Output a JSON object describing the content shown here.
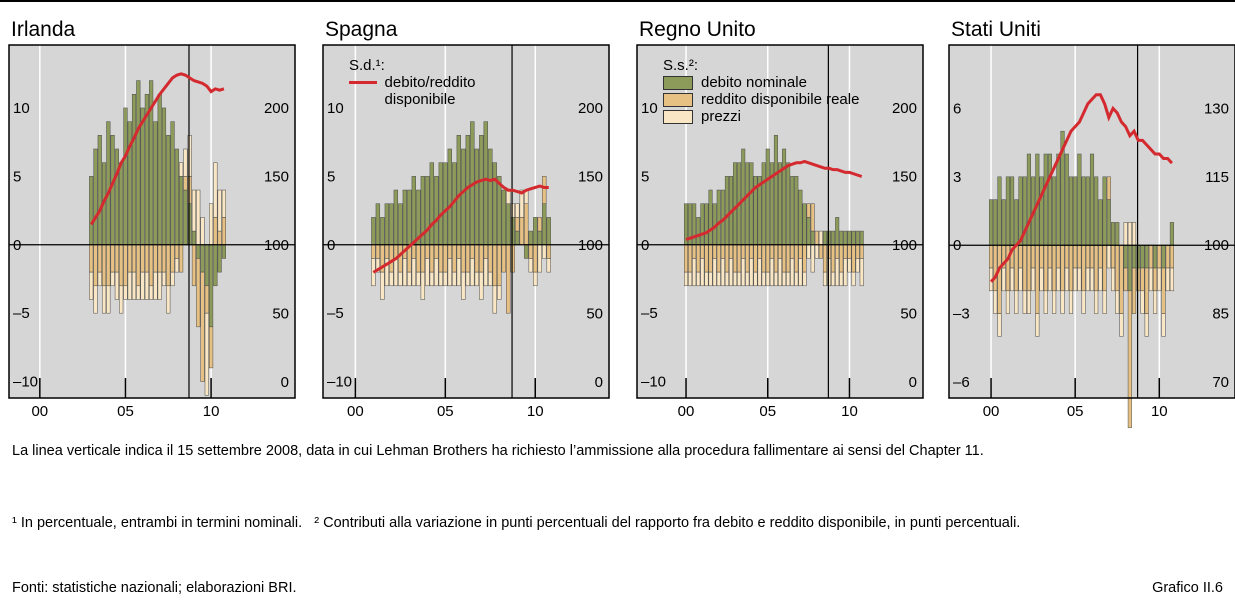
{
  "chart_data": [
    {
      "type": "combo",
      "title": "Irlanda",
      "xlim": [
        1998.2,
        2014.9
      ],
      "ylim": [
        -11.2,
        14.6
      ],
      "y2lim": [
        -11.7,
        246
      ],
      "xticks": [
        {
          "value": 2000,
          "label": "00"
        },
        {
          "value": 2005,
          "label": "05"
        },
        {
          "value": 2010,
          "label": "10"
        }
      ],
      "yticks": [
        {
          "value": -10,
          "label": "–10"
        },
        {
          "value": -5,
          "label": "–5"
        },
        0,
        5,
        10
      ],
      "y2ticks": [
        0,
        50,
        100,
        150,
        200
      ],
      "event_x": 2008.71,
      "x": [
        2003,
        2003.25,
        2003.5,
        2003.75,
        2004,
        2004.25,
        2004.5,
        2004.75,
        2005,
        2005.25,
        2005.5,
        2005.75,
        2006,
        2006.25,
        2006.5,
        2006.75,
        2007,
        2007.25,
        2007.5,
        2007.75,
        2008,
        2008.25,
        2008.5,
        2008.75,
        2009,
        2009.25,
        2009.5,
        2009.75,
        2010,
        2010.25,
        2010.5,
        2010.75
      ],
      "series": [
        {
          "name": "debito nominale",
          "color": "#8c9a5a",
          "values": [
            5,
            7,
            8,
            6,
            9,
            8,
            7,
            6,
            10,
            9,
            11,
            12,
            10,
            11,
            12,
            9,
            11,
            10,
            8,
            9,
            7,
            5,
            4,
            3,
            1,
            -1,
            -2,
            -3,
            -6,
            -3,
            -2,
            -1
          ]
        },
        {
          "name": "reddito disponibile reale",
          "color": "#e6c183",
          "values": [
            -2,
            -3,
            -2,
            -3,
            -3,
            -2,
            -2,
            -3,
            -3,
            -2,
            -2,
            -3,
            -2,
            -2,
            -3,
            -2,
            -2,
            -2,
            -3,
            -2,
            -1,
            -2,
            1,
            2,
            -3,
            -5,
            -8,
            -2,
            -3,
            2,
            1,
            2
          ]
        },
        {
          "name": "prezzi",
          "color": "#f8e6c4",
          "values": [
            -2,
            -2,
            -1,
            -2,
            -2,
            -1,
            -2,
            -2,
            -1,
            -2,
            -2,
            -1,
            -2,
            -2,
            -1,
            -2,
            -2,
            -1,
            -2,
            -1,
            -1,
            1,
            2,
            3,
            3,
            4,
            2,
            -6,
            3,
            4,
            3,
            2
          ]
        },
        {
          "name": "debito/reddito disponibile",
          "color": "#d42a2f",
          "axis": "y2",
          "values": [
            115,
            120,
            125,
            132,
            138,
            145,
            152,
            160,
            165,
            172,
            178,
            185,
            190,
            195,
            200,
            205,
            210,
            214,
            218,
            222,
            224,
            225,
            224,
            222,
            220,
            219,
            218,
            216,
            212,
            214,
            213,
            214
          ]
        }
      ]
    },
    {
      "type": "combo",
      "title": "Spagna",
      "xlim": [
        1998.2,
        2014.1
      ],
      "ylim": [
        -11.2,
        14.6
      ],
      "y2lim": [
        -11.7,
        246
      ],
      "xticks": [
        {
          "value": 2000,
          "label": "00"
        },
        {
          "value": 2005,
          "label": "05"
        },
        {
          "value": 2010,
          "label": "10"
        }
      ],
      "yticks": [
        {
          "value": -10,
          "label": "–10"
        },
        {
          "value": -5,
          "label": "–5"
        },
        0,
        5,
        10
      ],
      "y2ticks": [
        0,
        50,
        100,
        150,
        200
      ],
      "event_x": 2008.71,
      "legend": "line",
      "legend_title": "S.d.¹:",
      "x": [
        2001,
        2001.25,
        2001.5,
        2001.75,
        2002,
        2002.25,
        2002.5,
        2002.75,
        2003,
        2003.25,
        2003.5,
        2003.75,
        2004,
        2004.25,
        2004.5,
        2004.75,
        2005,
        2005.25,
        2005.5,
        2005.75,
        2006,
        2006.25,
        2006.5,
        2006.75,
        2007,
        2007.25,
        2007.5,
        2007.75,
        2008,
        2008.25,
        2008.5,
        2008.75,
        2009,
        2009.25,
        2009.5,
        2009.75,
        2010,
        2010.25,
        2010.5,
        2010.75
      ],
      "series": [
        {
          "name": "debito nominale",
          "color": "#8c9a5a",
          "values": [
            2,
            3,
            2,
            3,
            3,
            4,
            3,
            4,
            4,
            5,
            4,
            5,
            5,
            6,
            5,
            6,
            6,
            7,
            6,
            8,
            7,
            8,
            9,
            7,
            8,
            9,
            7,
            6,
            5,
            4,
            3,
            2,
            1,
            0,
            -1,
            1,
            2,
            1,
            3,
            2
          ]
        },
        {
          "name": "reddito disponibile reale",
          "color": "#e6c183",
          "values": [
            -1,
            -1,
            -2,
            -1,
            -2,
            -1,
            -2,
            -1,
            -2,
            -1,
            -2,
            -2,
            -1,
            -2,
            -1,
            -2,
            -2,
            -1,
            -2,
            -1,
            -2,
            -2,
            -1,
            -2,
            -2,
            -1,
            -2,
            -3,
            -3,
            -2,
            -5,
            -2,
            1,
            2,
            3,
            -1,
            -2,
            1,
            2,
            -1
          ]
        },
        {
          "name": "prezzi",
          "color": "#f8e6c4",
          "values": [
            -2,
            -1,
            -2,
            -2,
            -1,
            -2,
            -1,
            -2,
            -1,
            -2,
            -1,
            -2,
            -2,
            -1,
            -2,
            -1,
            -1,
            -2,
            -1,
            -2,
            -2,
            -1,
            -2,
            -1,
            -2,
            -2,
            -1,
            -2,
            -1,
            0,
            1,
            1,
            1,
            2,
            1,
            -1,
            -1,
            -2,
            -1,
            -1
          ]
        },
        {
          "name": "debito/reddito disponibile",
          "color": "#d42a2f",
          "axis": "y2",
          "values": [
            80,
            82,
            84,
            86,
            88,
            90,
            93,
            96,
            99,
            102,
            105,
            108,
            111,
            115,
            118,
            122,
            125,
            128,
            132,
            136,
            139,
            142,
            144,
            146,
            147,
            148,
            147,
            148,
            145,
            142,
            140,
            140,
            139,
            138,
            140,
            141,
            142,
            143,
            142,
            142
          ]
        }
      ]
    },
    {
      "type": "combo",
      "title": "Regno Unito",
      "xlim": [
        1997.0,
        2014.5
      ],
      "ylim": [
        -11.2,
        14.6
      ],
      "y2lim": [
        -11.7,
        246
      ],
      "xticks": [
        {
          "value": 2000,
          "label": "00"
        },
        {
          "value": 2005,
          "label": "05"
        },
        {
          "value": 2010,
          "label": "10"
        }
      ],
      "yticks": [
        {
          "value": -10,
          "label": "–10"
        },
        {
          "value": -5,
          "label": "–5"
        },
        0,
        5,
        10
      ],
      "y2ticks": [
        0,
        50,
        100,
        150,
        200
      ],
      "event_x": 2008.71,
      "legend": "bars",
      "legend_title": "S.s.²:",
      "x": [
        2000,
        2000.25,
        2000.5,
        2000.75,
        2001,
        2001.25,
        2001.5,
        2001.75,
        2002,
        2002.25,
        2002.5,
        2002.75,
        2003,
        2003.25,
        2003.5,
        2003.75,
        2004,
        2004.25,
        2004.5,
        2004.75,
        2005,
        2005.25,
        2005.5,
        2005.75,
        2006,
        2006.25,
        2006.5,
        2006.75,
        2007,
        2007.25,
        2007.5,
        2007.75,
        2008,
        2008.25,
        2008.5,
        2008.75,
        2009,
        2009.25,
        2009.5,
        2009.75,
        2010,
        2010.25,
        2010.5,
        2010.75
      ],
      "series": [
        {
          "name": "debito nominale",
          "color": "#8c9a5a",
          "values": [
            3,
            3,
            3,
            2,
            3,
            3,
            4,
            3,
            4,
            4,
            5,
            5,
            6,
            6,
            7,
            6,
            6,
            5,
            5,
            6,
            7,
            6,
            8,
            6,
            7,
            6,
            5,
            5,
            4,
            3,
            2,
            1,
            0,
            0,
            1,
            1,
            1,
            2,
            1,
            1,
            1,
            1,
            1,
            1
          ]
        },
        {
          "name": "reddito disponibile reale",
          "color": "#e6c183",
          "values": [
            -2,
            -2,
            -1,
            -2,
            -1,
            -2,
            -2,
            -1,
            -2,
            -1,
            -2,
            -1,
            -2,
            -2,
            -1,
            -2,
            -1,
            -2,
            -1,
            -2,
            -2,
            -1,
            -2,
            -1,
            -2,
            -2,
            -1,
            -2,
            -1,
            -2,
            1,
            2,
            1,
            -1,
            -2,
            -1,
            -2,
            -1,
            -2,
            -1,
            -1,
            -2,
            -1,
            -1
          ]
        },
        {
          "name": "prezzi",
          "color": "#f8e6c4",
          "values": [
            -1,
            -1,
            -2,
            -1,
            -2,
            -1,
            -1,
            -2,
            -1,
            -2,
            -1,
            -2,
            -1,
            -1,
            -2,
            -1,
            -2,
            -1,
            -2,
            -1,
            -1,
            -2,
            -1,
            -2,
            -1,
            -1,
            -2,
            -1,
            -2,
            -1,
            -1,
            -2,
            -1,
            1,
            -1,
            -2,
            -1,
            -2,
            -1,
            -2,
            -1,
            -1,
            -1,
            -2
          ]
        },
        {
          "name": "debito/reddito disponibile",
          "color": "#d42a2f",
          "axis": "y2",
          "values": [
            104,
            105,
            106,
            107,
            108,
            109,
            111,
            113,
            116,
            118,
            121,
            124,
            127,
            130,
            133,
            136,
            139,
            142,
            144,
            146,
            148,
            150,
            152,
            154,
            156,
            158,
            159,
            160,
            160,
            161,
            160,
            159,
            158,
            157,
            156,
            156,
            155,
            155,
            154,
            153,
            153,
            152,
            151,
            150
          ]
        }
      ]
    },
    {
      "type": "combo",
      "title": "Stati Uniti",
      "xlim": [
        1997.5,
        2014.5
      ],
      "ylim": [
        -6.7,
        8.78
      ],
      "y2lim": [
        66.5,
        143.9
      ],
      "xticks": [
        {
          "value": 2000,
          "label": "00"
        },
        {
          "value": 2005,
          "label": "05"
        },
        {
          "value": 2010,
          "label": "10"
        }
      ],
      "yticks": [
        {
          "value": -6,
          "label": "–6"
        },
        {
          "value": -3,
          "label": "–3"
        },
        0,
        3,
        6
      ],
      "y2ticks": [
        70,
        85,
        100,
        115,
        130
      ],
      "event_x": 2008.71,
      "x": [
        2000,
        2000.25,
        2000.5,
        2000.75,
        2001,
        2001.25,
        2001.5,
        2001.75,
        2002,
        2002.25,
        2002.5,
        2002.75,
        2003,
        2003.25,
        2003.5,
        2003.75,
        2004,
        2004.25,
        2004.5,
        2004.75,
        2005,
        2005.25,
        2005.5,
        2005.75,
        2006,
        2006.25,
        2006.5,
        2006.75,
        2007,
        2007.25,
        2007.5,
        2007.75,
        2008,
        2008.25,
        2008.5,
        2008.75,
        2009,
        2009.25,
        2009.5,
        2009.75,
        2010,
        2010.25,
        2010.5,
        2010.75
      ],
      "series": [
        {
          "name": "debito nominale",
          "color": "#8c9a5a",
          "values": [
            2,
            2,
            3,
            2,
            3,
            3,
            2,
            3,
            3,
            4,
            3,
            4,
            3,
            4,
            4,
            3,
            4,
            5,
            4,
            3,
            3,
            4,
            3,
            3,
            4,
            3,
            2,
            3,
            2,
            1,
            1,
            0,
            -1,
            -2,
            -1,
            -1,
            -1,
            -1,
            0,
            -1,
            0,
            -1,
            0,
            1
          ]
        },
        {
          "name": "reddito disponibile reale",
          "color": "#e6c183",
          "values": [
            -1,
            -2,
            -3,
            -1,
            -2,
            -1,
            -2,
            -1,
            -2,
            -2,
            -1,
            -3,
            -1,
            -2,
            -1,
            -2,
            -1,
            -2,
            -1,
            -2,
            -1,
            -1,
            -2,
            -1,
            -1,
            -2,
            -1,
            -2,
            1,
            -1,
            -2,
            -3,
            -1,
            -6,
            -2,
            -1,
            -1,
            -2,
            -1,
            -1,
            -1,
            -2,
            -1,
            -1
          ]
        },
        {
          "name": "prezzi",
          "color": "#f8e6c4",
          "values": [
            -1,
            -1,
            -1,
            -1,
            -1,
            -1,
            -1,
            -1,
            -1,
            -1,
            -1,
            -1,
            -1,
            -1,
            -1,
            -1,
            -1,
            -1,
            -1,
            -1,
            -1,
            -1,
            -1,
            -1,
            -1,
            -1,
            -1,
            -1,
            -1,
            -1,
            -1,
            -1,
            1,
            1,
            1,
            0,
            -1,
            -1,
            -1,
            -1,
            -1,
            -1,
            -1,
            -1
          ]
        },
        {
          "name": "debito/reddito disponibile",
          "color": "#d42a2f",
          "axis": "y2",
          "values": [
            92,
            93,
            95,
            96,
            97,
            99,
            100,
            101,
            103,
            105,
            107,
            109,
            111,
            113,
            115,
            117,
            119,
            121,
            123,
            125,
            126,
            127,
            129,
            131,
            132,
            133,
            133,
            131,
            128,
            130,
            129,
            127,
            126,
            124,
            125,
            123,
            123,
            122,
            121,
            120,
            120,
            119,
            119,
            118
          ]
        }
      ]
    }
  ],
  "note": "La linea verticale indica il 15 settembre 2008, data in cui Lehman Brothers ha richiesto l’ammissione alla procedura fallimentare ai sensi del Chapter 11.",
  "footnotes": [
    "¹ In percentuale, entrambi in termini nominali.",
    "² Contributi alla variazione in punti percentuali del rapporto fra debito e reddito disponibile, in punti percentuali."
  ],
  "source": "Fonti: statistiche nazionali; elaborazioni BRI.",
  "chart_number": "Grafico II.6"
}
